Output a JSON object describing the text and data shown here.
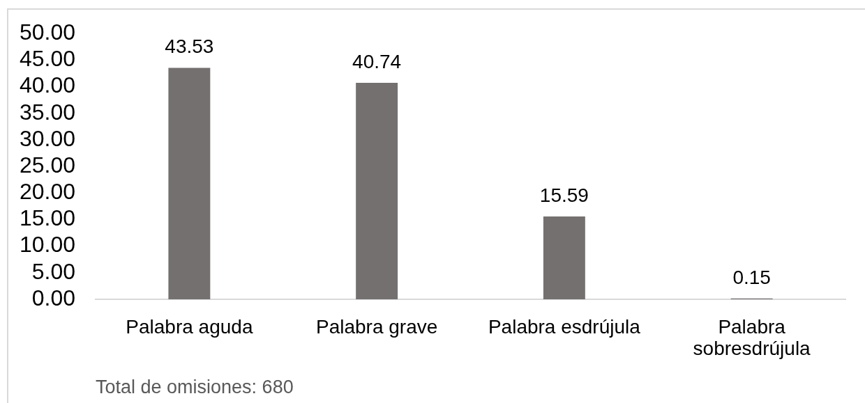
{
  "chart_data": {
    "type": "bar",
    "categories": [
      "Palabra aguda",
      "Palabra grave",
      "Palabra esdrújula",
      "Palabra sobresdrújula"
    ],
    "values": [
      43.53,
      40.74,
      15.59,
      0.15
    ],
    "color": "#757070",
    "ylim": [
      0,
      50
    ],
    "yticks": [
      {
        "value": 0,
        "label": "0.00"
      },
      {
        "value": 5,
        "label": "5.00"
      },
      {
        "value": 10,
        "label": "10.00"
      },
      {
        "value": 15,
        "label": "15.00"
      },
      {
        "value": 20,
        "label": "20.00"
      },
      {
        "value": 25,
        "label": "25.00"
      },
      {
        "value": 30,
        "label": "30.00"
      },
      {
        "value": 35,
        "label": "35.00"
      },
      {
        "value": 40,
        "label": "40.00"
      },
      {
        "value": 45,
        "label": "45.00"
      },
      {
        "value": 50,
        "label": "50.00"
      }
    ],
    "data_labels": true,
    "annotations": [
      "Total de omisiones: 680"
    ]
  }
}
